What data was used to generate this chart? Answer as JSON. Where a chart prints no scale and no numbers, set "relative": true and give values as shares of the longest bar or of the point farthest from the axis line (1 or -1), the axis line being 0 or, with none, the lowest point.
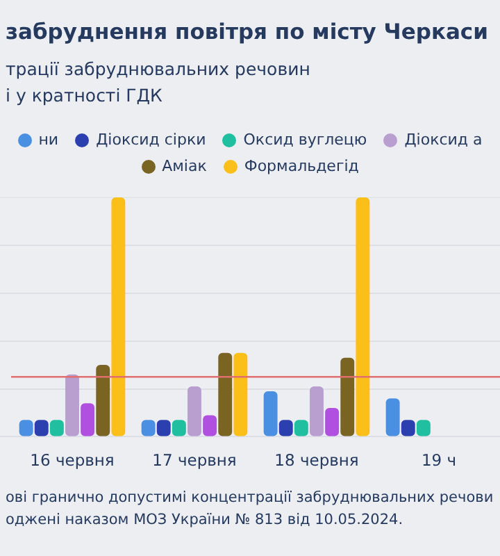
{
  "chart_data": {
    "type": "bar",
    "title": "забруднення повітря по місту Черкаси",
    "subtitle": "трації забруднювальних речовин\nі у кратності ГДК",
    "relative": true,
    "grid": "y",
    "legend": "top",
    "categories": [
      "16 червня",
      "17 червня",
      "18 червня",
      "19 ч"
    ],
    "series": [
      {
        "name": "ни",
        "color": "#4a90e2",
        "values": [
          0.07,
          0.07,
          0.19,
          0.16
        ]
      },
      {
        "name": "Діоксид сірки",
        "color": "#2b3fae",
        "values": [
          0.07,
          0.07,
          0.07,
          0.07
        ]
      },
      {
        "name": "Оксид вуглецю",
        "color": "#1fbfa0",
        "values": [
          0.07,
          0.07,
          0.07,
          0.07
        ]
      },
      {
        "name": "Діоксид а",
        "color": "#b89fcf",
        "values": [
          0.26,
          0.21,
          0.21,
          null
        ]
      },
      {
        "color": "#b150e0",
        "values": [
          0.14,
          0.09,
          0.12,
          null
        ]
      },
      {
        "name": "Аміак",
        "color": "#7a6424",
        "values": [
          0.3,
          0.35,
          0.33,
          null
        ]
      },
      {
        "name": "Формальдегід",
        "color": "#fbbf1a",
        "values": [
          1,
          0.35,
          1,
          null
        ]
      }
    ],
    "ref_lines": [
      {
        "axis": "y",
        "value": 0.25,
        "color": "#e07070"
      }
    ],
    "annotations": [
      "ові гранично допустимі концентрації забруднювальних речови",
      "оджені наказом МОЗ України № 813 від 10.05.2024."
    ]
  }
}
